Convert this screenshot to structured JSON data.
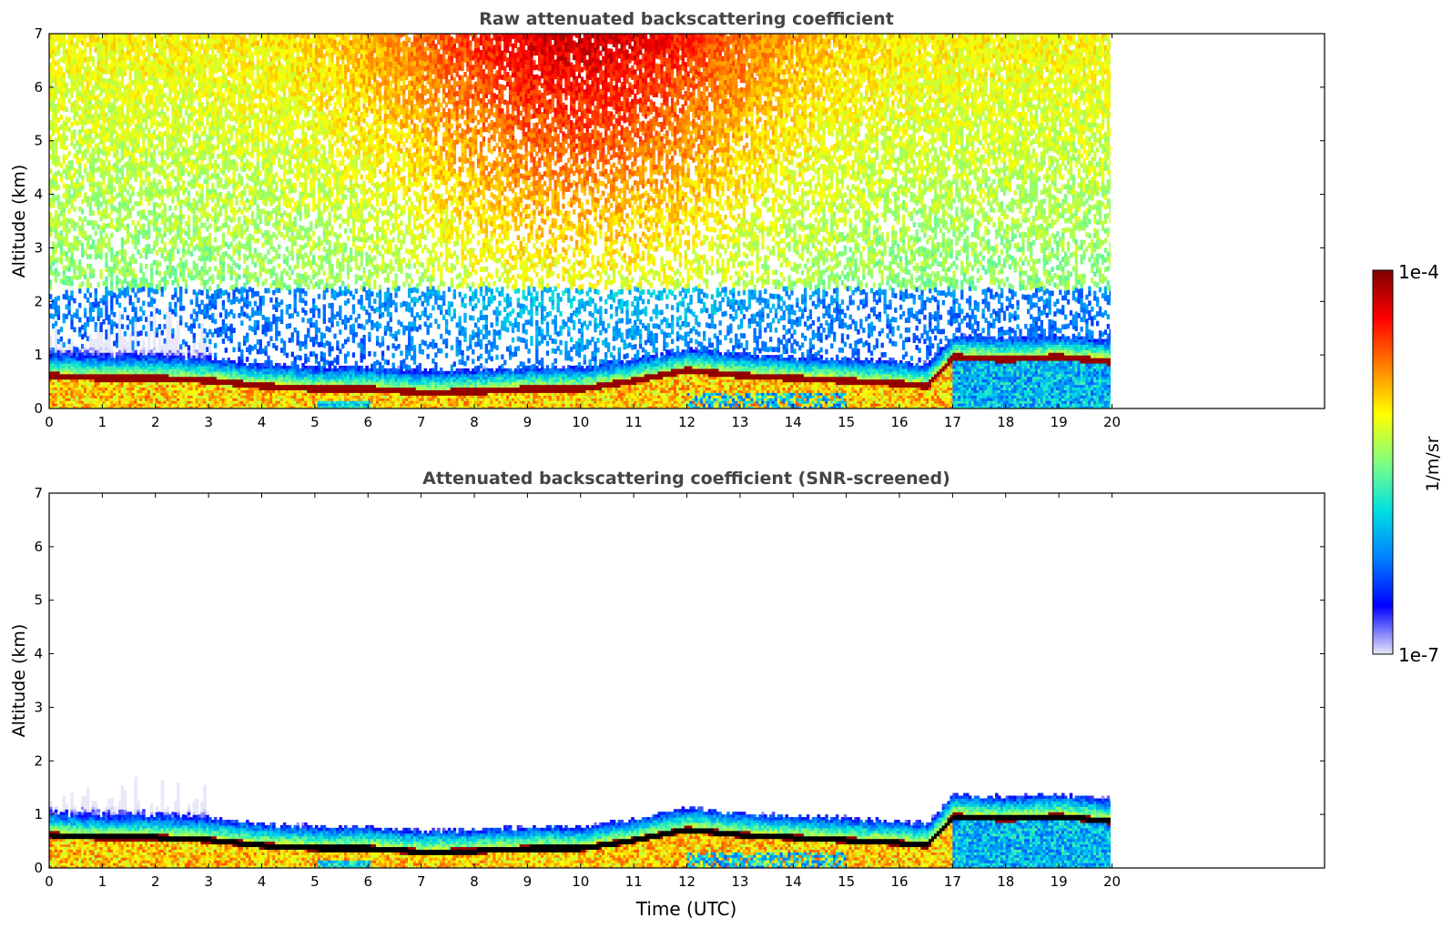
{
  "chart_data": [
    {
      "type": "heatmap",
      "title": "Raw attenuated backscattering coefficient",
      "ylabel": "Altitude (km)",
      "xlabel": "",
      "xlim": [
        0,
        24
      ],
      "ylim": [
        0,
        7
      ],
      "x_data_end": 20,
      "x_ticks": [
        "0",
        "1",
        "2",
        "3",
        "4",
        "5",
        "6",
        "7",
        "8",
        "9",
        "10",
        "11",
        "12",
        "13",
        "14",
        "15",
        "16",
        "17",
        "18",
        "19",
        "20"
      ],
      "y_ticks": [
        "0",
        "1",
        "2",
        "3",
        "4",
        "5",
        "6",
        "7"
      ],
      "features": {
        "boundary_layer_top_km": [
          {
            "t": 0,
            "z": 0.6
          },
          {
            "t": 1,
            "z": 0.55
          },
          {
            "t": 2,
            "z": 0.55
          },
          {
            "t": 3,
            "z": 0.5
          },
          {
            "t": 4,
            "z": 0.4
          },
          {
            "t": 5,
            "z": 0.35
          },
          {
            "t": 6,
            "z": 0.35
          },
          {
            "t": 7,
            "z": 0.28
          },
          {
            "t": 8,
            "z": 0.3
          },
          {
            "t": 9,
            "z": 0.35
          },
          {
            "t": 10,
            "z": 0.35
          },
          {
            "t": 11,
            "z": 0.5
          },
          {
            "t": 12,
            "z": 0.7
          },
          {
            "t": 13,
            "z": 0.6
          },
          {
            "t": 14,
            "z": 0.55
          },
          {
            "t": 15,
            "z": 0.5
          },
          {
            "t": 16,
            "z": 0.45
          },
          {
            "t": 16.5,
            "z": 0.4
          },
          {
            "t": 17,
            "z": 0.95
          },
          {
            "t": 18,
            "z": 0.9
          },
          {
            "t": 19,
            "z": 0.95
          },
          {
            "t": 20,
            "z": 0.85
          }
        ],
        "noise_peak_time_utc": 10,
        "noise_max_altitude_km": 7
      },
      "grid": false,
      "legend": "none"
    },
    {
      "type": "heatmap",
      "title": "Attenuated backscattering coefficient (SNR-screened)",
      "ylabel": "Altitude (km)",
      "xlabel": "Time (UTC)",
      "xlim": [
        0,
        24
      ],
      "ylim": [
        0,
        7
      ],
      "x_data_end": 20,
      "x_ticks": [
        "0",
        "1",
        "2",
        "3",
        "4",
        "5",
        "6",
        "7",
        "8",
        "9",
        "10",
        "11",
        "12",
        "13",
        "14",
        "15",
        "16",
        "17",
        "18",
        "19",
        "20"
      ],
      "y_ticks": [
        "0",
        "1",
        "2",
        "3",
        "4",
        "5",
        "6",
        "7"
      ],
      "grid": false,
      "legend": "none"
    }
  ],
  "colorbar": {
    "label": "1/m/sr",
    "max_label": "1e-4",
    "min_label": "1e-7",
    "scale": "log",
    "range": [
      1e-07,
      0.0001
    ],
    "colormap": [
      "#e8e8f8",
      "#0000ff",
      "#0080ff",
      "#00e0e0",
      "#80ff80",
      "#ffff00",
      "#ff8000",
      "#ff0000",
      "#800000"
    ]
  }
}
